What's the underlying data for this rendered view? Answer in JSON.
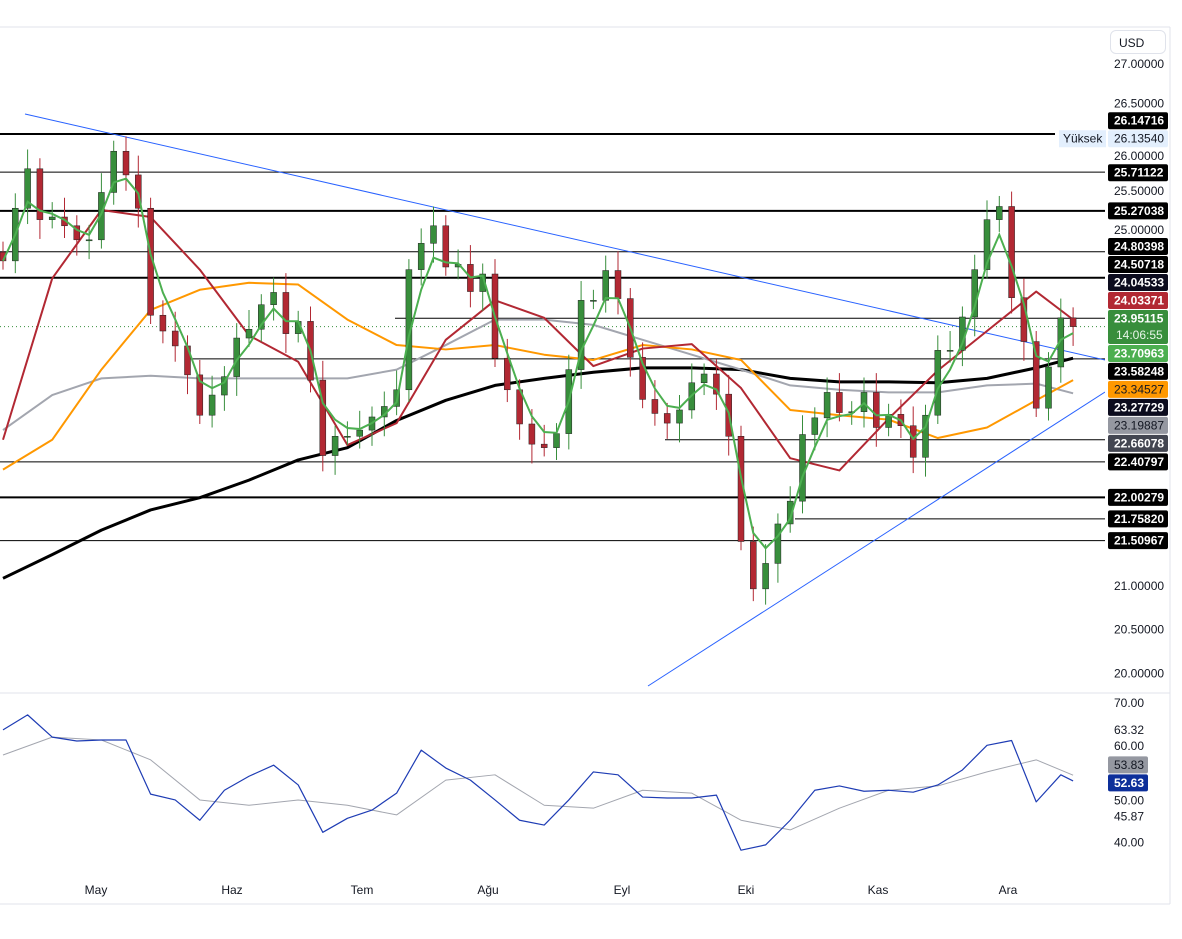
{
  "currency_button": "USD",
  "colors": {
    "up": "#388e3c",
    "down": "#b22833",
    "ma_fast": "#4caf50",
    "ma_red": "#b22833",
    "ma_orange": "#ff9800",
    "ma_gray": "#a3a6af",
    "ma_black": "#000000",
    "trendline": "#2962ff",
    "rsi": "#1e3cb4",
    "rsi_ma": "#a3a6af"
  },
  "chart_data": [
    {
      "type": "candlestick",
      "ylim": [
        20.0,
        27.0
      ],
      "y_scale": "linear",
      "grid": false,
      "x_tick_labels": [
        "May",
        "Haz",
        "Tem",
        "Ağu",
        "Eyl",
        "Eki",
        "Kas",
        "Ara"
      ],
      "y_tick_labels": [
        "27.00000",
        "26.50000",
        "26.00000",
        "25.50000",
        "25.00000",
        "21.00000",
        "20.50000",
        "20.00000"
      ],
      "closes": [
        24.7,
        25.3,
        25.75,
        25.17,
        25.2,
        25.1,
        24.94,
        24.94,
        25.48,
        25.95,
        25.68,
        25.3,
        24.08,
        23.9,
        23.73,
        23.4,
        22.94,
        23.17,
        23.38,
        23.82,
        23.92,
        24.2,
        24.34,
        23.87,
        24.01,
        23.34,
        22.48,
        22.7,
        22.7,
        22.77,
        22.92,
        23.04,
        23.23,
        24.6,
        24.9,
        25.1,
        24.63,
        24.66,
        24.35,
        24.55,
        23.59,
        23.23,
        22.84,
        22.61,
        22.57,
        22.73,
        23.46,
        24.25,
        24.25,
        24.59,
        24.27,
        23.6,
        23.12,
        22.96,
        22.85,
        23.0,
        23.31,
        23.41,
        23.18,
        22.7,
        21.5,
        20.96,
        21.25,
        21.7,
        21.96,
        22.72,
        22.91,
        23.2,
        22.97,
        22.98,
        23.2,
        22.8,
        22.95,
        22.82,
        22.46,
        22.94,
        23.68,
        23.68,
        24.06,
        24.6,
        25.17,
        25.32,
        24.28,
        23.78,
        23.02,
        23.49,
        24.05,
        23.95
      ],
      "moving_averages_every_4_candles": {
        "red": [
          22.66,
          24.5,
          25.28,
          25.2,
          24.6,
          23.85,
          23.55,
          22.6,
          22.85,
          23.8,
          24.25,
          24.05,
          23.5,
          23.7,
          23.75,
          23.25,
          22.45,
          22.31,
          22.9,
          23.45,
          23.9,
          24.35,
          24.03
        ],
        "orange": [
          22.32,
          22.66,
          23.46,
          24.14,
          24.37,
          24.45,
          24.43,
          24.03,
          23.74,
          23.69,
          23.74,
          23.63,
          23.57,
          23.74,
          23.69,
          23.57,
          23.0,
          22.94,
          22.89,
          22.68,
          22.8,
          23.11,
          23.34
        ],
        "gray": [
          22.77,
          23.17,
          23.36,
          23.39,
          23.36,
          23.36,
          23.36,
          23.36,
          23.46,
          23.74,
          24.03,
          24.03,
          23.97,
          23.8,
          23.63,
          23.46,
          23.28,
          23.23,
          23.2,
          23.2,
          23.28,
          23.3,
          23.19
        ],
        "black": [
          21.08,
          21.35,
          21.63,
          21.86,
          22.0,
          22.2,
          22.43,
          22.57,
          22.88,
          23.11,
          23.28,
          23.36,
          23.43,
          23.48,
          23.48,
          23.46,
          23.36,
          23.32,
          23.32,
          23.31,
          23.36,
          23.48,
          23.59
        ]
      },
      "horizontal_levels": [
        {
          "value": "26.14716",
          "style": "thick"
        },
        {
          "value": "25.71122",
          "style": "thin"
        },
        {
          "value": "25.27038",
          "style": "thick"
        },
        {
          "value": "24.80398",
          "style": "thin"
        },
        {
          "value": "24.50718",
          "style": "thick"
        },
        {
          "value": "24.04533",
          "style": "thin-partial"
        },
        {
          "value": "23.58248",
          "style": "thin-partial"
        },
        {
          "value": "22.66078",
          "style": "thin-partial"
        },
        {
          "value": "22.40797",
          "style": "thin"
        },
        {
          "value": "22.00279",
          "style": "thick"
        },
        {
          "value": "21.75820",
          "style": "thin-partial"
        },
        {
          "value": "21.50967",
          "style": "thin"
        }
      ],
      "trendlines": [
        {
          "from": [
            "Apr",
            26.46
          ],
          "to": [
            "Ara",
            23.65
          ]
        },
        {
          "from": [
            "Eyl",
            20.11
          ],
          "to": [
            "Ara",
            23.57
          ]
        }
      ],
      "price_labels": [
        {
          "value": "26.14716",
          "bg": "#000000",
          "fg": "#ffffff"
        },
        {
          "value": "26.13540",
          "bg": "#e3effd",
          "fg": "#131722",
          "tag": "Yüksek"
        },
        {
          "value": "25.71122",
          "bg": "#000000",
          "fg": "#ffffff"
        },
        {
          "value": "25.27038",
          "bg": "#000000",
          "fg": "#ffffff"
        },
        {
          "value": "24.80398",
          "bg": "#000000",
          "fg": "#ffffff"
        },
        {
          "value": "24.50718",
          "bg": "#000000",
          "fg": "#ffffff"
        },
        {
          "value": "24.04533",
          "bg": "#0c0c1e",
          "fg": "#ffffff"
        },
        {
          "value": "24.03371",
          "bg": "#b22833",
          "fg": "#ffffff"
        },
        {
          "value": "23.95115",
          "bg": "#388e3c",
          "fg": "#ffffff",
          "countdown": "14:06:55"
        },
        {
          "value": "23.70963",
          "bg": "#4caf50",
          "fg": "#ffffff"
        },
        {
          "value": "23.58248",
          "bg": "#000000",
          "fg": "#ffffff"
        },
        {
          "value": "23.34527",
          "bg": "#ff9800",
          "fg": "#131722"
        },
        {
          "value": "23.27729",
          "bg": "#0c0c1e",
          "fg": "#ffffff"
        },
        {
          "value": "23.19887",
          "bg": "#9598a1",
          "fg": "#131722"
        },
        {
          "value": "22.66078",
          "bg": "#434651",
          "fg": "#ffffff"
        },
        {
          "value": "22.40797",
          "bg": "#000000",
          "fg": "#ffffff"
        },
        {
          "value": "22.00279",
          "bg": "#000000",
          "fg": "#ffffff"
        },
        {
          "value": "21.75820",
          "bg": "#000000",
          "fg": "#ffffff"
        },
        {
          "value": "21.50967",
          "bg": "#000000",
          "fg": "#ffffff"
        }
      ]
    },
    {
      "type": "line",
      "panel": "RSI",
      "ylim": [
        36,
        71
      ],
      "y_tick_labels": [
        "70.00",
        "63.32",
        "60.00",
        "50.00",
        "45.87",
        "40.00"
      ],
      "rsi_every_2_candles": [
        63.2,
        66.3,
        61.7,
        60.9,
        61.1,
        61.1,
        49.9,
        48.7,
        44.5,
        50.7,
        53.6,
        55.9,
        51.8,
        42.0,
        44.9,
        46.6,
        50.1,
        59.0,
        55.3,
        52.8,
        48.7,
        44.5,
        43.5,
        48.7,
        54.5,
        53.9,
        49.3,
        49.1,
        49.1,
        49.7,
        38.3,
        39.4,
        44.5,
        50.7,
        51.6,
        50.5,
        50.7,
        50.3,
        51.8,
        54.9,
        60.0,
        61.0,
        48.3,
        53.9,
        52.63
      ],
      "rsi_ma_every_4_candles": [
        58.0,
        61.7,
        61.1,
        57.0,
        48.7,
        47.6,
        48.7,
        47.6,
        45.6,
        52.8,
        53.9,
        47.6,
        47.0,
        50.7,
        50.1,
        44.5,
        42.5,
        47.0,
        50.7,
        51.6,
        54.5,
        57.0,
        53.83
      ],
      "value_labels": [
        {
          "value": "53.83",
          "bg": "#9598a1",
          "fg": "#131722"
        },
        {
          "value": "52.63",
          "bg": "#0d2f9a",
          "fg": "#ffffff"
        }
      ]
    }
  ]
}
